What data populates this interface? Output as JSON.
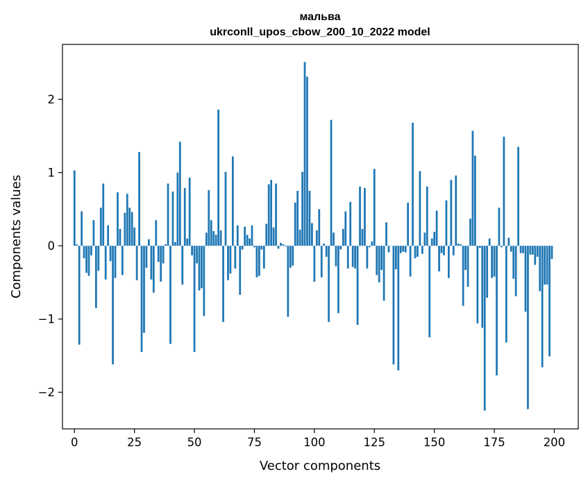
{
  "chart_data": {
    "type": "bar",
    "title": "мальва",
    "subtitle": "ukrconll_upos_cbow_200_10_2022 model",
    "xlabel": "Vector components",
    "ylabel": "Components values",
    "xlim": [
      -5,
      210
    ],
    "ylim": [
      -2.5,
      2.75
    ],
    "x_ticks": [
      0,
      25,
      50,
      75,
      100,
      125,
      150,
      175,
      200
    ],
    "y_ticks": [
      -2,
      -1,
      0,
      1,
      2
    ],
    "bar_color": "#1f77b4",
    "grid": false,
    "legend": "none",
    "values": [
      1.03,
      0.02,
      -1.35,
      0.47,
      -0.17,
      -0.37,
      -0.41,
      -0.13,
      0.35,
      -0.85,
      -0.34,
      0.52,
      0.85,
      -0.46,
      0.28,
      -0.21,
      -1.62,
      -0.44,
      0.73,
      0.23,
      -0.4,
      0.45,
      0.71,
      0.52,
      0.46,
      0.25,
      -0.47,
      1.28,
      -1.45,
      -1.19,
      -0.3,
      0.09,
      -0.46,
      -0.64,
      0.35,
      -0.22,
      -0.49,
      -0.24,
      0.02,
      0.85,
      -1.34,
      0.74,
      0.05,
      1.0,
      1.42,
      -0.53,
      0.79,
      0.1,
      0.93,
      -0.13,
      -1.45,
      -0.24,
      -0.61,
      -0.58,
      -0.96,
      0.18,
      0.76,
      0.35,
      0.2,
      0.15,
      1.86,
      0.21,
      -1.04,
      1.01,
      -0.47,
      -0.38,
      1.22,
      -0.31,
      0.28,
      -0.67,
      -0.05,
      0.26,
      0.15,
      0.1,
      0.28,
      -0.02,
      -0.43,
      -0.41,
      -0.05,
      -0.31,
      0.3,
      0.84,
      0.9,
      0.25,
      0.85,
      -0.04,
      0.04,
      0.02,
      -0.01,
      -0.97,
      -0.3,
      -0.27,
      0.59,
      0.75,
      0.22,
      1.01,
      2.51,
      2.31,
      0.75,
      0.31,
      -0.49,
      0.21,
      0.5,
      -0.43,
      0.03,
      -0.15,
      -1.04,
      1.72,
      0.18,
      -0.28,
      -0.92,
      -0.05,
      0.23,
      0.47,
      -0.31,
      0.6,
      -0.29,
      -0.31,
      -1.08,
      0.81,
      0.23,
      0.79,
      -0.31,
      -0.02,
      0.06,
      1.05,
      -0.4,
      -0.5,
      -0.33,
      -0.75,
      0.32,
      -0.09,
      0.0,
      -1.62,
      -0.32,
      -1.7,
      -0.1,
      -0.08,
      -0.09,
      0.59,
      -0.42,
      1.68,
      -0.17,
      -0.15,
      1.02,
      -0.11,
      0.18,
      0.81,
      -1.25,
      0.1,
      0.19,
      0.48,
      -0.35,
      -0.1,
      -0.13,
      0.62,
      -0.44,
      0.9,
      -0.13,
      0.96,
      0.03,
      0.02,
      -0.82,
      -0.33,
      -0.56,
      0.37,
      1.57,
      1.23,
      -1.06,
      -0.03,
      -1.12,
      -2.25,
      -0.71,
      0.1,
      -0.44,
      -0.42,
      -1.77,
      0.52,
      -0.02,
      1.49,
      -1.32,
      0.11,
      -0.08,
      -0.45,
      -0.69,
      1.35,
      -0.1,
      -0.1,
      -0.9,
      -2.23,
      -0.12,
      -0.12,
      -0.26,
      -0.15,
      -0.62,
      -1.66,
      -0.53,
      -0.53,
      -1.51,
      -0.18
    ]
  }
}
